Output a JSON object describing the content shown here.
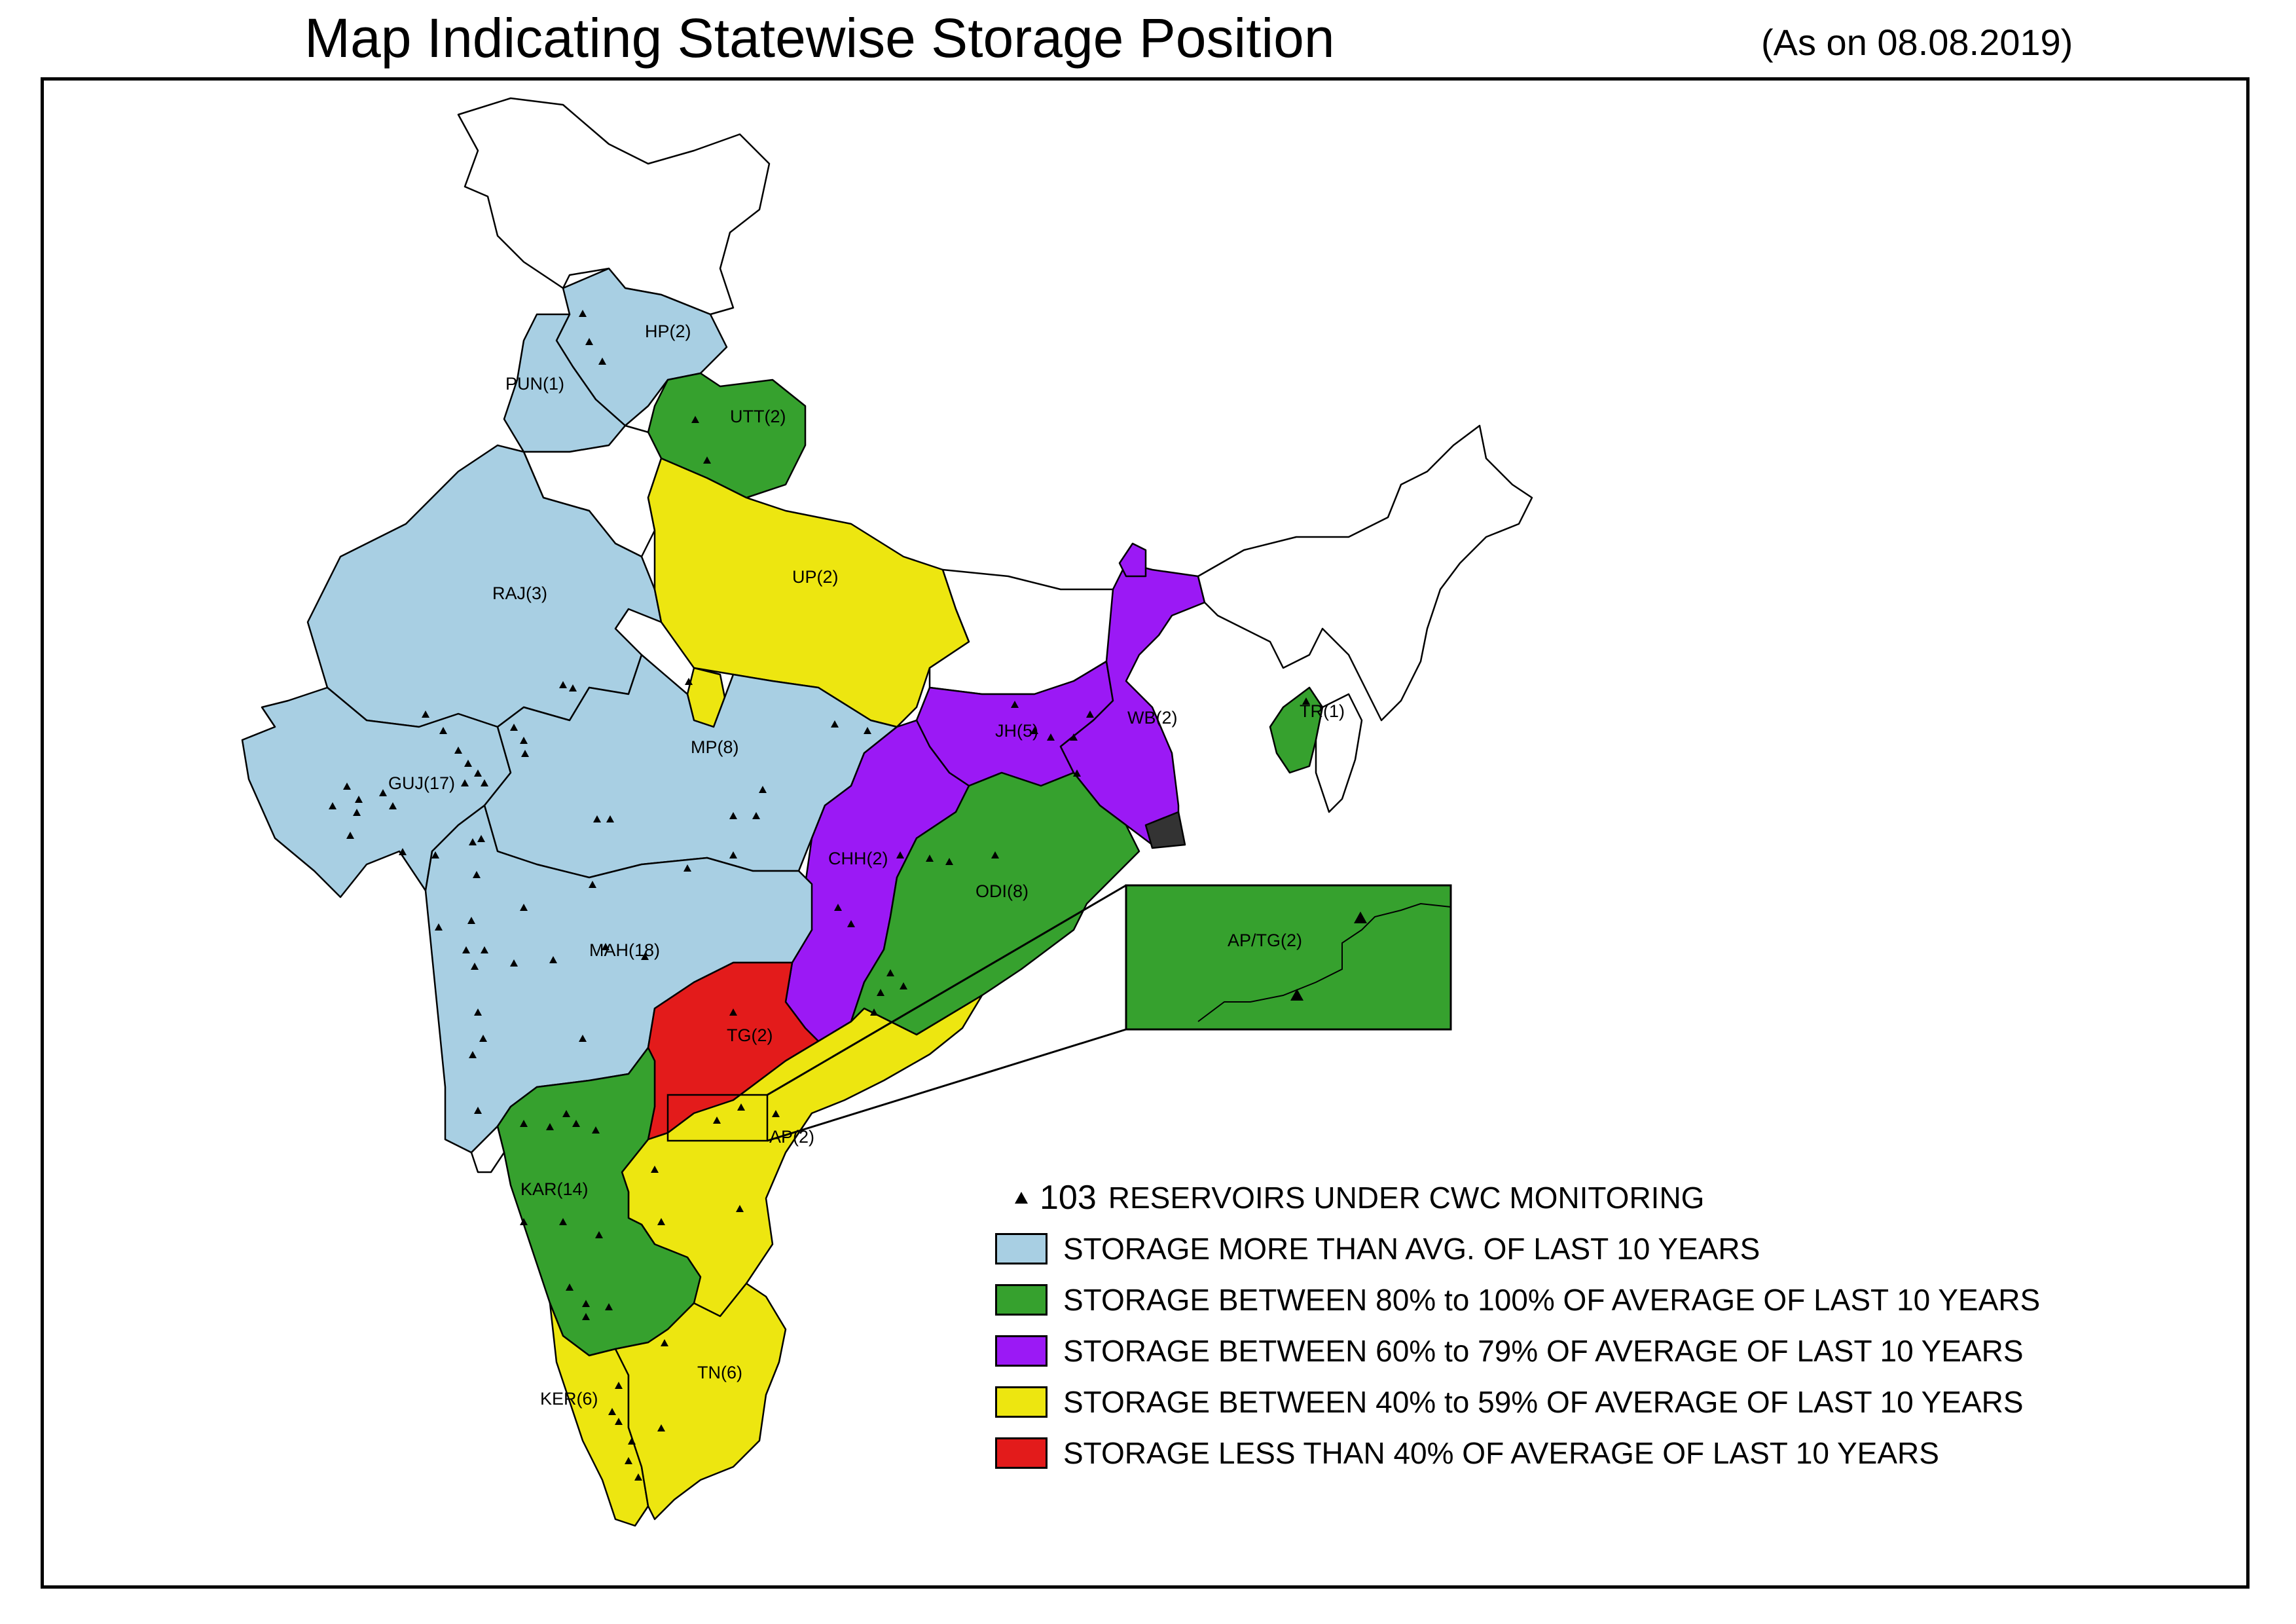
{
  "title": "Map Indicating Statewise Storage Position",
  "date_note": "(As on 08.08.2019)",
  "colors": {
    "more_than_avg": "#a8cfe3",
    "between_80_100": "#36a12e",
    "between_60_79": "#9b19f5",
    "between_40_59": "#ede610",
    "less_than_40": "#e31b1b",
    "none": "#ffffff"
  },
  "states": [
    {
      "label": "HP(2)",
      "category": "more_than_avg"
    },
    {
      "label": "PUN(1)",
      "category": "more_than_avg"
    },
    {
      "label": "UTT(2)",
      "category": "between_80_100"
    },
    {
      "label": "RAJ(3)",
      "category": "more_than_avg"
    },
    {
      "label": "UP(2)",
      "category": "between_40_59"
    },
    {
      "label": "GUJ(17)",
      "category": "more_than_avg"
    },
    {
      "label": "MP(8)",
      "category": "more_than_avg"
    },
    {
      "label": "JH(5)",
      "category": "between_60_79"
    },
    {
      "label": "WB(2)",
      "category": "between_60_79"
    },
    {
      "label": "TR(1)",
      "category": "between_80_100"
    },
    {
      "label": "CHH(2)",
      "category": "between_60_79"
    },
    {
      "label": "ODI(8)",
      "category": "between_80_100"
    },
    {
      "label": "MAH(18)",
      "category": "more_than_avg"
    },
    {
      "label": "TG(2)",
      "category": "less_than_40"
    },
    {
      "label": "AP(2)",
      "category": "between_40_59"
    },
    {
      "label": "KAR(14)",
      "category": "between_80_100"
    },
    {
      "label": "KER(6)",
      "category": "between_40_59"
    },
    {
      "label": "TN(6)",
      "category": "between_40_59"
    }
  ],
  "inset": {
    "label": "AP/TG(2)",
    "category": "between_80_100"
  },
  "legend": {
    "reservoir_count": "103",
    "reservoir_text": "RESERVOIRS UNDER CWC MONITORING",
    "items": [
      {
        "color_key": "more_than_avg",
        "text": "STORAGE MORE THAN AVG. OF LAST 10 YEARS"
      },
      {
        "color_key": "between_80_100",
        "text": "STORAGE BETWEEN 80% to 100% OF AVERAGE OF LAST 10 YEARS"
      },
      {
        "color_key": "between_60_79",
        "text": "STORAGE BETWEEN 60% to 79% OF AVERAGE OF LAST 10 YEARS"
      },
      {
        "color_key": "between_40_59",
        "text": "STORAGE BETWEEN 40% to 59% OF AVERAGE OF LAST 10 YEARS"
      },
      {
        "color_key": "less_than_40",
        "text": "STORAGE LESS THAN 40% OF AVERAGE OF LAST 10 YEARS"
      }
    ]
  }
}
